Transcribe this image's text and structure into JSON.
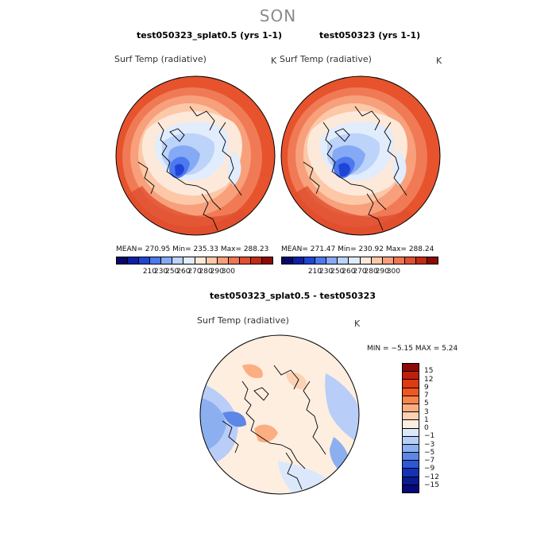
{
  "figure": {
    "season": "SON"
  },
  "panels": [
    {
      "title": "test050323_splat0.5 (yrs 1-1)",
      "field": "Surf Temp (radiative)",
      "units": "K",
      "stats": "MEAN= 270.95   Min= 235.33   Max= 288.23"
    },
    {
      "title": "test050323 (yrs 1-1)",
      "field": "Surf Temp (radiative)",
      "units": "K",
      "stats": "MEAN= 271.47   Min= 230.92   Max= 288.24"
    },
    {
      "title": "test050323_splat0.5 - test050323",
      "field": "Surf Temp (radiative)",
      "units": "K",
      "stats": "MIN =   −5.15  MAX =    5.24"
    }
  ],
  "colorbars": {
    "absolute": {
      "ticks": [
        "210",
        "230",
        "250",
        "260",
        "270",
        "280",
        "290",
        "300"
      ],
      "colors": [
        "#08086b",
        "#0d1fa8",
        "#1f44d6",
        "#4d78ee",
        "#86a9f5",
        "#bcd3fa",
        "#e1ecfd",
        "#fde9da",
        "#fcc8a8",
        "#f7a07b",
        "#f07652",
        "#e04f30",
        "#c32a14",
        "#8c0a08"
      ]
    },
    "difference": {
      "ticks": [
        "15",
        "12",
        "9",
        "7",
        "5",
        "3",
        "1",
        "0",
        "−1",
        "−3",
        "−5",
        "−7",
        "−9",
        "−12",
        "−15"
      ],
      "colors": [
        "#8c0a08",
        "#c21e0c",
        "#e03a12",
        "#f0561f",
        "#f8844e",
        "#fbae82",
        "#fdd1b3",
        "#fdeee0",
        "#dbe8fb",
        "#b8cdf7",
        "#8cafef",
        "#5d86e6",
        "#2f58d6",
        "#1332b6",
        "#0a1a8f",
        "#06097a"
      ]
    }
  }
}
